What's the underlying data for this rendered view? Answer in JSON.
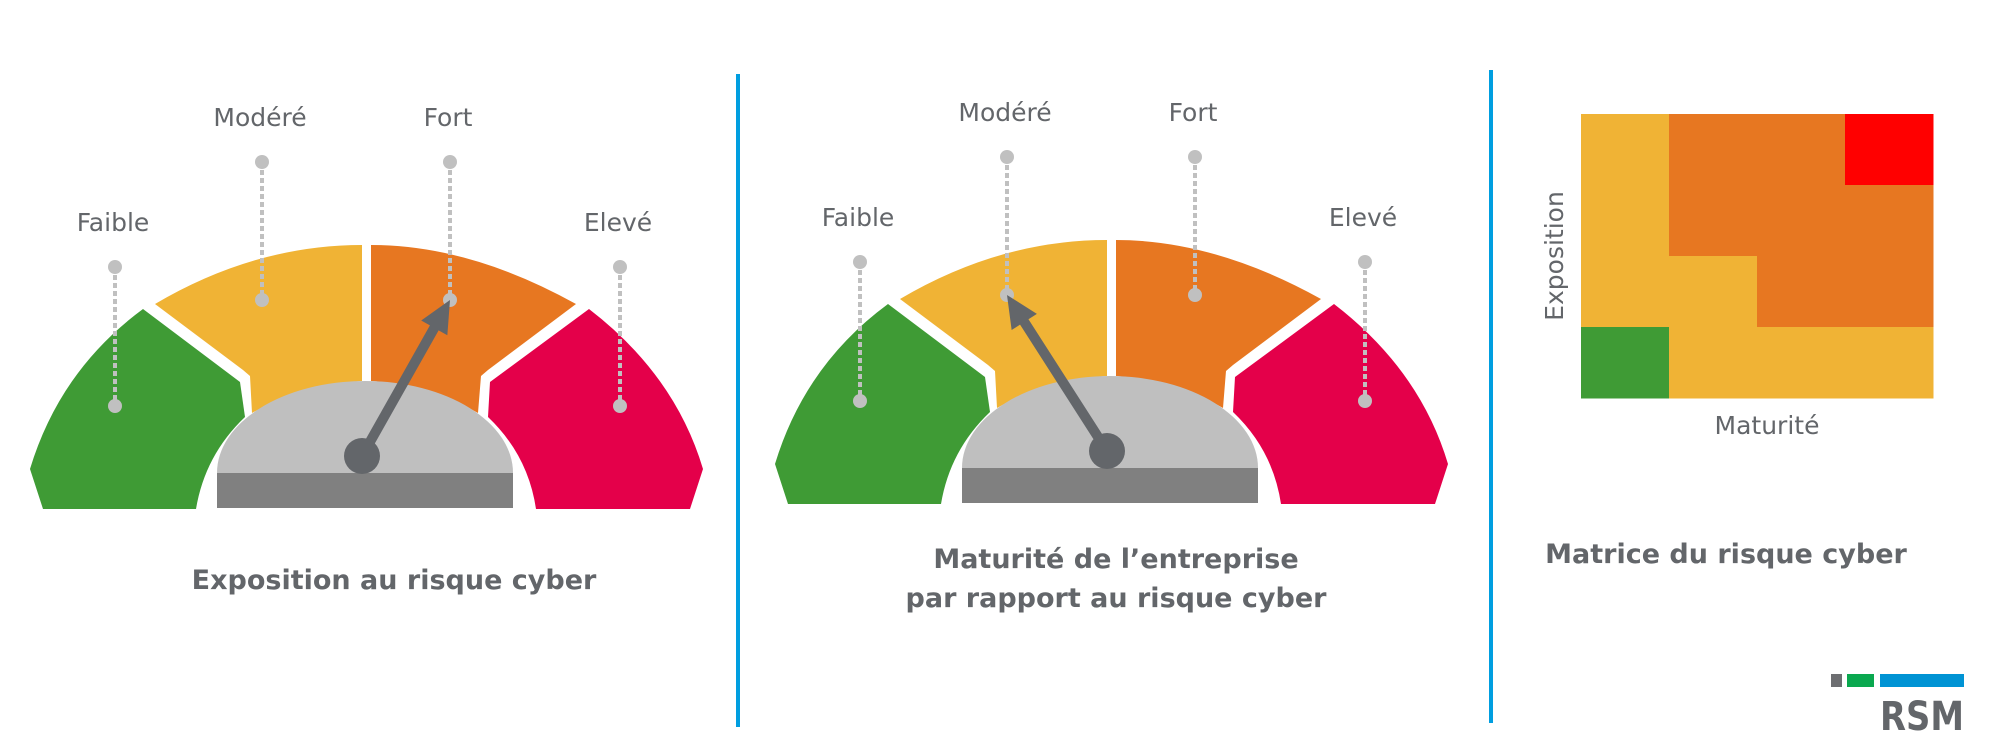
{
  "colors": {
    "low": "#3f9b35",
    "moderate": "#f0b335",
    "strong": "#e77721",
    "high": "#e4004a",
    "critical": "#ff0000",
    "dial": "#bfbfbf",
    "base": "#808080",
    "needle": "#63666a",
    "marker": "#c0c0c0",
    "divider": "#009ee0",
    "text": "#63666a"
  },
  "gauges": [
    {
      "levels": [
        "Faible",
        "Modéré",
        "Fort",
        "Elevé"
      ],
      "indicated_level": "Fort",
      "title_lines": [
        "Exposition au risque cyber"
      ]
    },
    {
      "levels": [
        "Faible",
        "Modéré",
        "Fort",
        "Elevé"
      ],
      "indicated_level": "Modéré",
      "title_lines": [
        "Maturité de l’entreprise",
        "par rapport au risque cyber"
      ]
    }
  ],
  "matrix": {
    "x_label": "Maturité",
    "y_label": "Exposition",
    "title": "Matrice du risque cyber",
    "cells_top_to_bottom": [
      [
        "moderate",
        "strong",
        "strong",
        "critical"
      ],
      [
        "moderate",
        "strong",
        "strong",
        "strong"
      ],
      [
        "moderate",
        "moderate",
        "strong",
        "strong"
      ],
      [
        "low",
        "moderate",
        "moderate",
        "moderate"
      ]
    ]
  },
  "logo": {
    "text": "RSM",
    "bar_colors": [
      "#6d6e71",
      "#0aa84f",
      "#0093d4"
    ]
  }
}
